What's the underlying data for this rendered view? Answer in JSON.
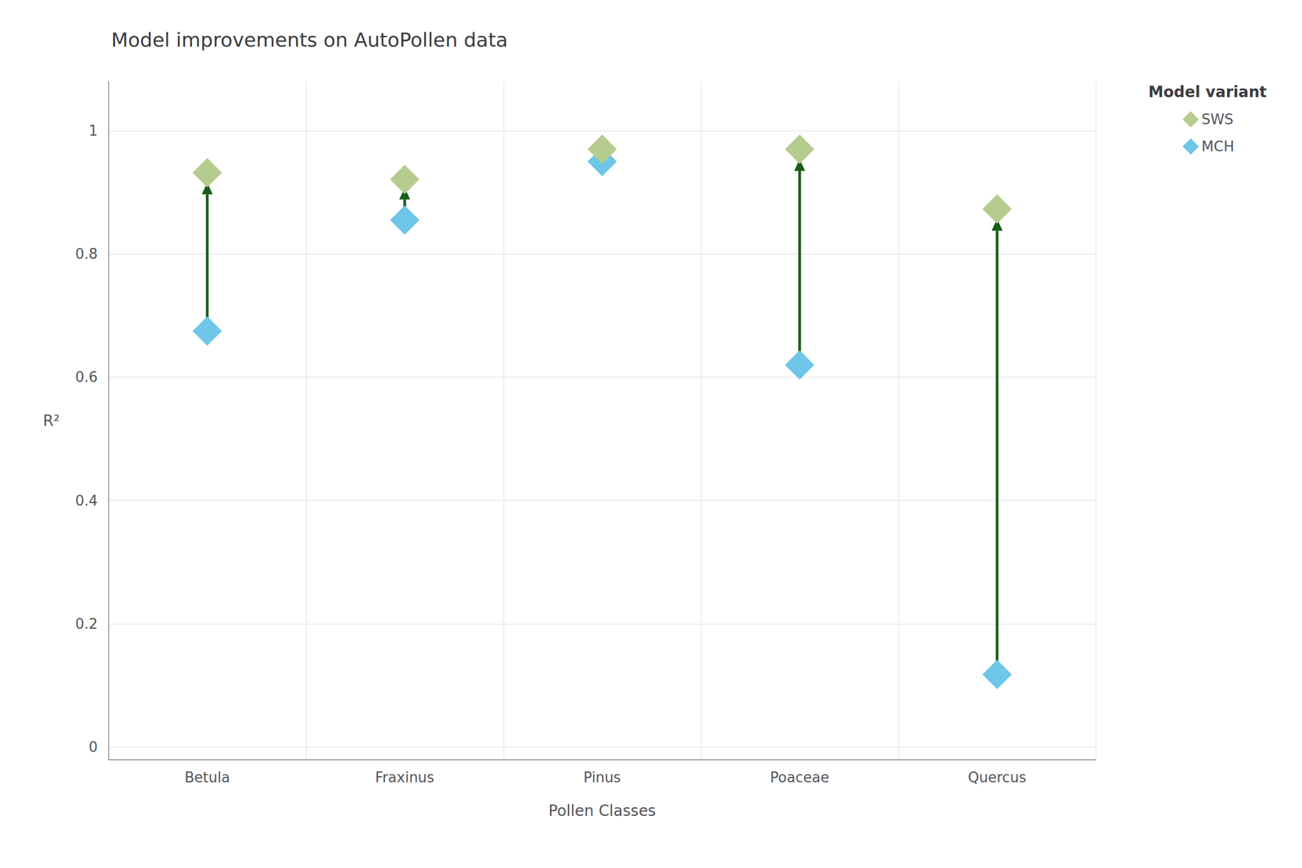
{
  "chart_data": {
    "type": "scatter",
    "title": "Model improvements on AutoPollen data",
    "xlabel": "Pollen Classes",
    "ylabel": "R²",
    "categories": [
      "Betula",
      "Fraxinus",
      "Pinus",
      "Poaceae",
      "Quercus"
    ],
    "series": [
      {
        "name": "SWS",
        "color": "#b5cc8e",
        "marker": "diamond",
        "values": [
          0.932,
          0.921,
          0.97,
          0.97,
          0.873
        ]
      },
      {
        "name": "MCH",
        "color": "#6ec6e8",
        "marker": "diamond",
        "values": [
          0.675,
          0.855,
          0.95,
          0.62,
          0.118
        ]
      }
    ],
    "arrows": {
      "from": "MCH",
      "to": "SWS",
      "color": "#1a5c1a"
    },
    "ylim": [
      -0.02,
      1.08
    ],
    "yticks": [
      0,
      0.2,
      0.4,
      0.6,
      0.8,
      1
    ],
    "grid": true,
    "legend": "upper right",
    "legend_title": "Model variant"
  }
}
